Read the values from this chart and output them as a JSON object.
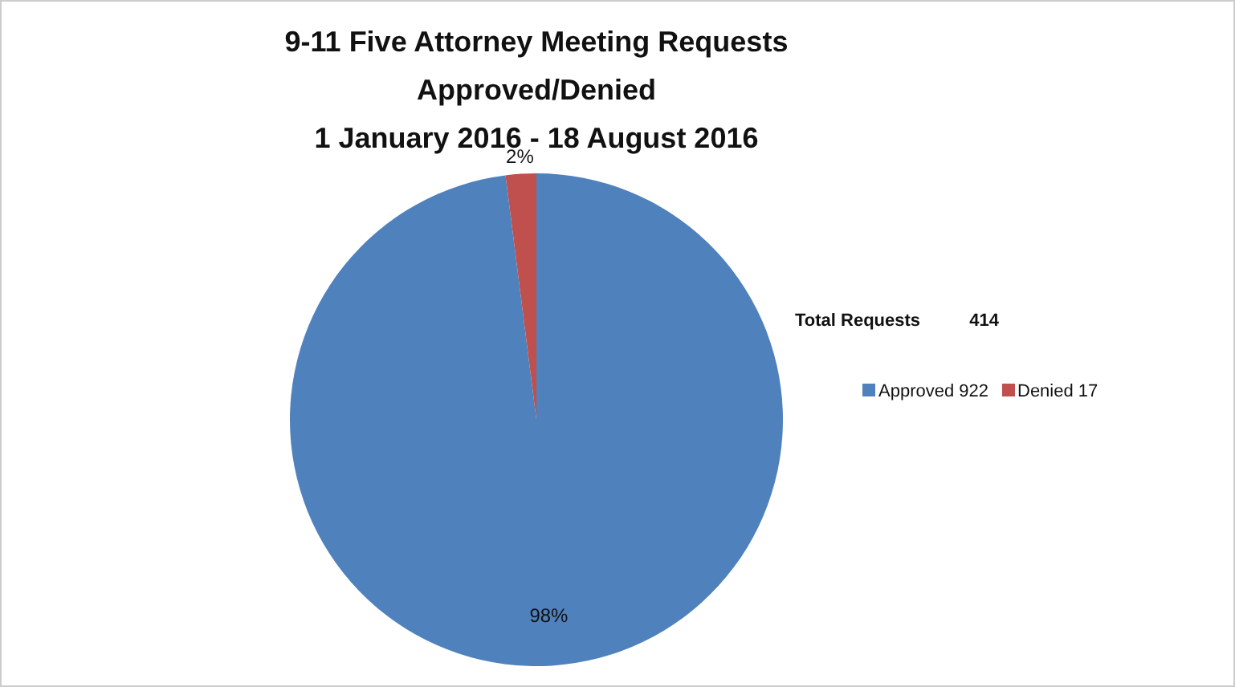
{
  "chart_data": {
    "type": "pie",
    "title": "9-11 Five Attorney Meeting Requests\nApproved/Denied\n1 January 2016 - 18 August 2016",
    "categories": [
      "Approved 922",
      "Denied 17"
    ],
    "values": [
      98,
      2
    ],
    "colors": [
      "#4f81bd",
      "#c0504d"
    ],
    "value_labels": [
      "98%",
      "2%"
    ],
    "legend": "right",
    "annotations": [
      "Total Requests          414"
    ]
  }
}
